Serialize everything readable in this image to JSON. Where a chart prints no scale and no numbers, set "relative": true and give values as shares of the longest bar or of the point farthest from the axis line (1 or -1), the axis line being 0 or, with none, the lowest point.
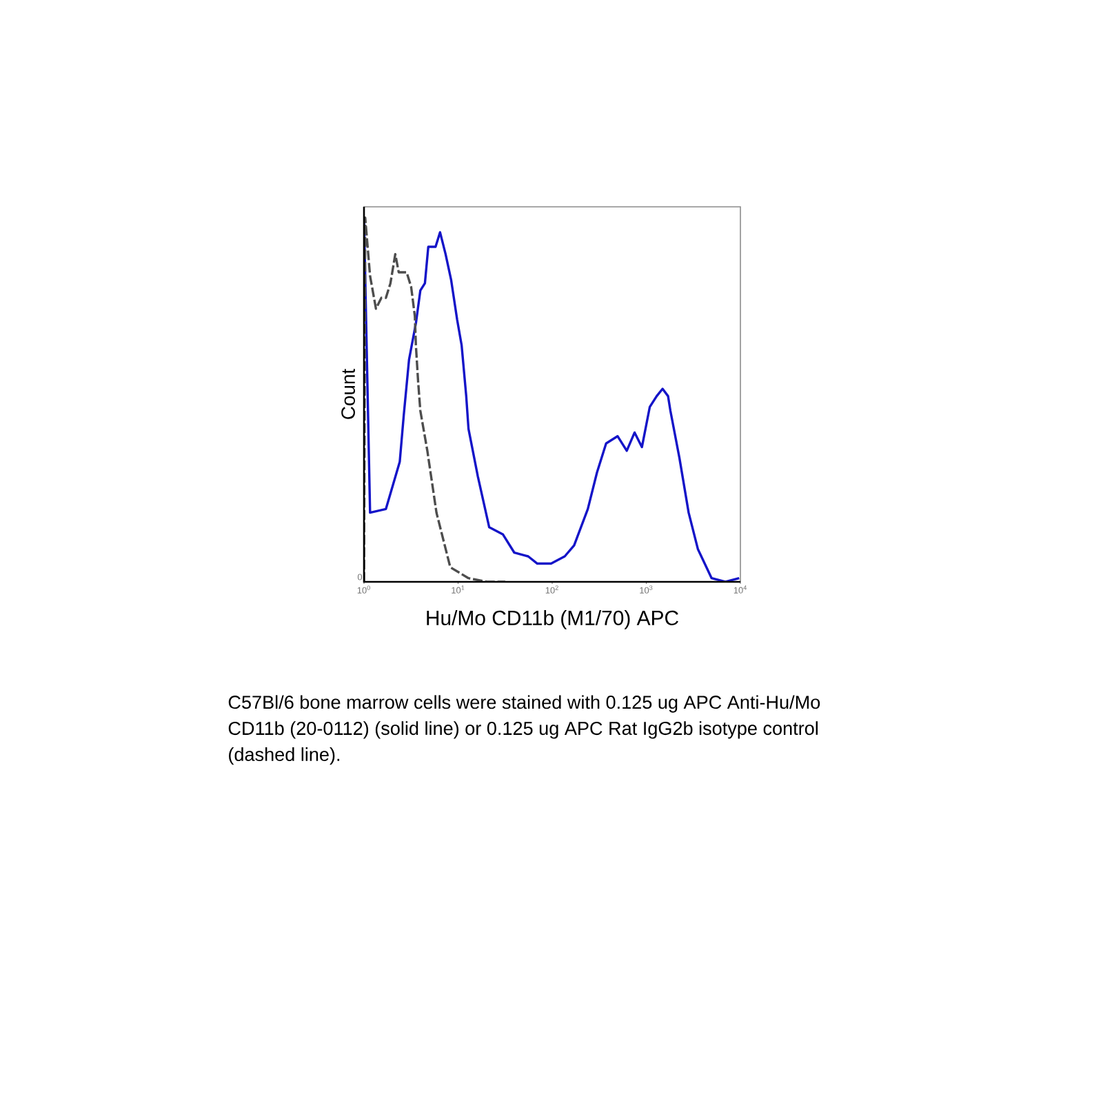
{
  "chart_data": {
    "type": "line",
    "xlabel": "Hu/Mo CD11b (M1/70) APC",
    "ylabel": "Count",
    "annotations": [
      {
        "text": "0",
        "x": 1,
        "y": 0
      },
      "C57Bl/6 bone marrow cells were stained with 0.125 ug APC Anti-Hu/Mo CD11b (20-0112) (solid line) or 0.125 ug APC Rat IgG2b isotype control (dashed line)."
    ],
    "log": "x",
    "relative": true,
    "marker": "none",
    "xlim": [
      1,
      10000
    ],
    "xticks": [
      {
        "value": 1,
        "label": "10$^{0}$"
      },
      {
        "value": 10,
        "label": "10$^{1}$"
      },
      {
        "value": 100,
        "label": "10$^{2}$"
      },
      {
        "value": 1000,
        "label": "10$^{3}$"
      },
      {
        "value": 10000,
        "label": "10$^{4}$"
      }
    ],
    "series": [
      {
        "color": "#1414c8",
        "line_style": "solid",
        "x": [
          1,
          1.16,
          1.71,
          2.4,
          2.65,
          3.01,
          3.56,
          3.97,
          4.44,
          4.82,
          5.76,
          6.43,
          7.36,
          8.42,
          9.77,
          10.9,
          12.2,
          12.9,
          16.2,
          21.4,
          30,
          39.6,
          55.5,
          69.5,
          97.3,
          136,
          171,
          239,
          299,
          374,
          495,
          620,
          751,
          898,
          1088,
          1289,
          1489,
          1703,
          1803,
          2250,
          2818,
          3532,
          4943,
          6930,
          9710
        ],
        "values": [
          1.0,
          0.19,
          0.2,
          0.33,
          0.46,
          0.61,
          0.71,
          0.8,
          0.82,
          0.92,
          0.92,
          0.96,
          0.9,
          0.83,
          0.72,
          0.65,
          0.51,
          0.42,
          0.29,
          0.15,
          0.13,
          0.08,
          0.07,
          0.05,
          0.05,
          0.07,
          0.1,
          0.2,
          0.3,
          0.38,
          0.4,
          0.36,
          0.41,
          0.37,
          0.48,
          0.51,
          0.53,
          0.51,
          0.47,
          0.34,
          0.19,
          0.09,
          0.01,
          0.0,
          0.01
        ]
      },
      {
        "color": "#4d4d4d",
        "line_style": "dashed",
        "x": [
          1,
          1.03,
          1.16,
          1.34,
          1.53,
          1.71,
          1.91,
          2.15,
          2.34,
          2.84,
          3.17,
          3.47,
          3.56,
          3.76,
          3.97,
          4.71,
          5.89,
          8.26,
          12.9,
          20.2,
          31.7
        ],
        "values": [
          0.0,
          1.0,
          0.84,
          0.75,
          0.78,
          0.78,
          0.82,
          0.9,
          0.85,
          0.85,
          0.81,
          0.73,
          0.65,
          0.55,
          0.47,
          0.36,
          0.19,
          0.04,
          0.01,
          0.0,
          0.0
        ]
      }
    ]
  }
}
